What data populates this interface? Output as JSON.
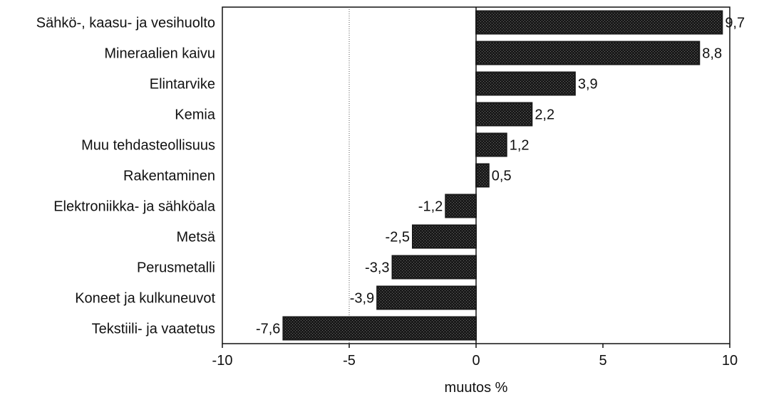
{
  "chart_data": {
    "type": "bar",
    "orientation": "horizontal",
    "categories": [
      "Sähkö-, kaasu- ja vesihuolto",
      "Mineraalien kaivu",
      "Elintarvike",
      "Kemia",
      "Muu tehdasteollisuus",
      "Rakentaminen",
      "Elektroniikka- ja sähköala",
      "Metsä",
      "Perusmetalli",
      "Koneet ja kulkuneuvot",
      "Tekstiili- ja vaatetus"
    ],
    "values": [
      9.7,
      8.8,
      3.9,
      2.2,
      1.2,
      0.5,
      -1.2,
      -2.5,
      -3.3,
      -3.9,
      -7.6
    ],
    "value_labels": [
      "9,7",
      "8,8",
      "3,9",
      "2,2",
      "1,2",
      "0,5",
      "-1,2",
      "-2,5",
      "-3,3",
      "-3,9",
      "-7,6"
    ],
    "xlabel": "muutos %",
    "xlim": [
      -10,
      10
    ],
    "xticks": [
      -10,
      -5,
      0,
      5,
      10
    ],
    "xtick_labels": [
      "-10",
      "-5",
      "0",
      "5",
      "10"
    ],
    "reference_line": -5,
    "grid": false,
    "bar_color": "#1a1a1a"
  }
}
